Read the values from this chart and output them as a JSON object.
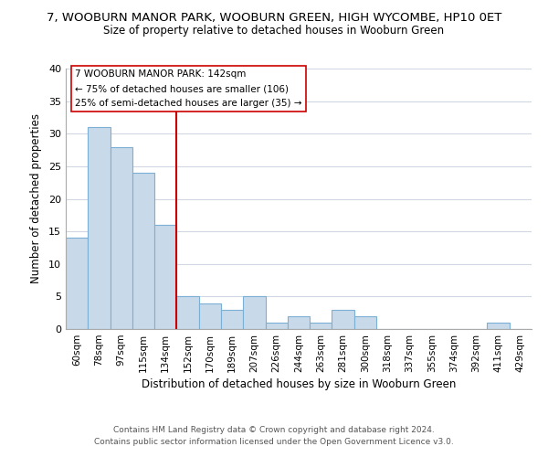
{
  "title": "7, WOOBURN MANOR PARK, WOOBURN GREEN, HIGH WYCOMBE, HP10 0ET",
  "subtitle": "Size of property relative to detached houses in Wooburn Green",
  "xlabel": "Distribution of detached houses by size in Wooburn Green",
  "ylabel": "Number of detached properties",
  "bar_labels": [
    "60sqm",
    "78sqm",
    "97sqm",
    "115sqm",
    "134sqm",
    "152sqm",
    "170sqm",
    "189sqm",
    "207sqm",
    "226sqm",
    "244sqm",
    "263sqm",
    "281sqm",
    "300sqm",
    "318sqm",
    "337sqm",
    "355sqm",
    "374sqm",
    "392sqm",
    "411sqm",
    "429sqm"
  ],
  "bar_values": [
    14,
    31,
    28,
    24,
    16,
    5,
    4,
    3,
    5,
    1,
    2,
    1,
    3,
    2,
    0,
    0,
    0,
    0,
    0,
    1,
    0
  ],
  "bar_color": "#c8daea",
  "bar_edge_color": "#7bafd4",
  "vline_x": 4.5,
  "vline_color": "#cc0000",
  "ylim": [
    0,
    40
  ],
  "yticks": [
    0,
    5,
    10,
    15,
    20,
    25,
    30,
    35,
    40
  ],
  "annotation_title": "7 WOOBURN MANOR PARK: 142sqm",
  "annotation_line1": "← 75% of detached houses are smaller (106)",
  "annotation_line2": "25% of semi-detached houses are larger (35) →",
  "footer1": "Contains HM Land Registry data © Crown copyright and database right 2024.",
  "footer2": "Contains public sector information licensed under the Open Government Licence v3.0.",
  "background_color": "#ffffff",
  "grid_color": "#d0d8e4"
}
